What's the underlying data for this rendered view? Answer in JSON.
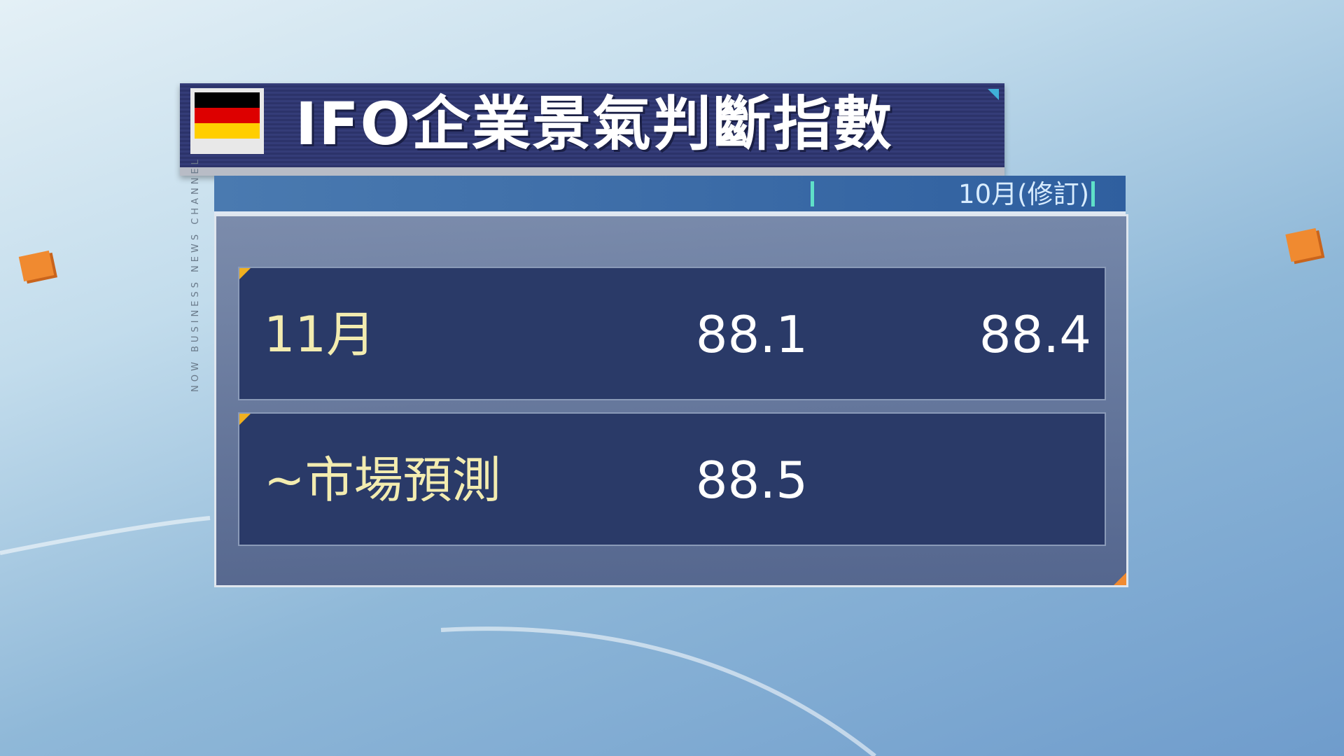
{
  "title": "IFO企業景氣判斷指數",
  "flag": {
    "country": "Germany",
    "colors": [
      "#000000",
      "#dd0000",
      "#ffce00"
    ]
  },
  "header": {
    "column_2": "10月(修訂)"
  },
  "side_text": "NOW BUSINESS NEWS CHANNEL",
  "rows": [
    {
      "label": "11月",
      "value_1": "88.1",
      "value_2": "88.4"
    },
    {
      "label": "~市場預測",
      "value_1": "88.5",
      "value_2": ""
    }
  ]
}
